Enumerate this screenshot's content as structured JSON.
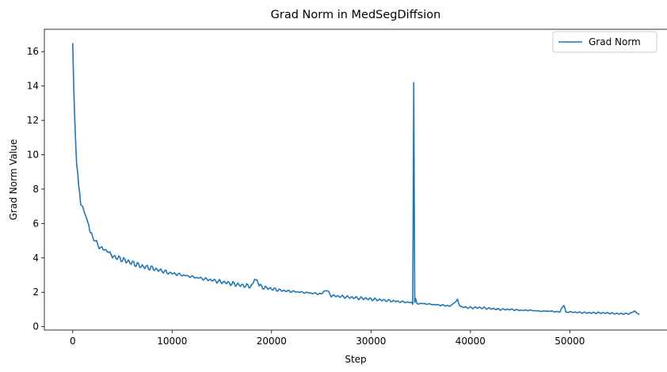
{
  "chart_data": {
    "type": "line",
    "title": "Grad Norm in MedSegDiffsion",
    "xlabel": "Step",
    "ylabel": "Grad Norm Value",
    "xlim": [
      -2850,
      59850
    ],
    "ylim": [
      -0.2,
      17.3
    ],
    "xticks": [
      0,
      10000,
      20000,
      30000,
      40000,
      50000
    ],
    "yticks": [
      0,
      2,
      4,
      6,
      8,
      10,
      12,
      14,
      16
    ],
    "grid": false,
    "legend": {
      "position": "top-right",
      "entries": [
        "Grad Norm"
      ]
    },
    "series": [
      {
        "name": "Grad Norm",
        "color": "#1f77b4",
        "x": [
          0,
          100,
          200,
          300,
          400,
          500,
          600,
          700,
          800,
          1000,
          1200,
          1400,
          1600,
          1800,
          2000,
          2400,
          2800,
          3200,
          3600,
          4000,
          4500,
          5000,
          5500,
          6000,
          6500,
          7000,
          7500,
          8000,
          8500,
          9000,
          9500,
          10000,
          11000,
          12000,
          13000,
          14000,
          15000,
          16000,
          17000,
          18000,
          18300,
          19000,
          20000,
          21000,
          22000,
          23000,
          24000,
          25000,
          25500,
          26000,
          27000,
          28000,
          29000,
          30000,
          31000,
          32000,
          33000,
          34000,
          34200,
          34300,
          34400,
          34500,
          34600,
          35000,
          36000,
          37000,
          38000,
          38700,
          39000,
          40000,
          41000,
          42000,
          43000,
          44000,
          45000,
          46000,
          47000,
          48000,
          49000,
          49400,
          49600,
          50000,
          51000,
          52000,
          53000,
          54000,
          55000,
          56000,
          56500,
          57000
        ],
        "values": [
          16.5,
          14.0,
          12.2,
          10.7,
          9.4,
          9.0,
          8.2,
          7.8,
          7.1,
          7.0,
          6.6,
          6.3,
          5.9,
          5.5,
          5.2,
          4.9,
          4.6,
          4.5,
          4.3,
          4.1,
          4.0,
          3.9,
          3.8,
          3.7,
          3.6,
          3.5,
          3.45,
          3.4,
          3.3,
          3.25,
          3.15,
          3.1,
          3.0,
          2.9,
          2.8,
          2.7,
          2.6,
          2.5,
          2.4,
          2.35,
          2.8,
          2.3,
          2.2,
          2.1,
          2.05,
          2.0,
          1.95,
          1.9,
          2.15,
          1.8,
          1.75,
          1.7,
          1.65,
          1.6,
          1.55,
          1.5,
          1.45,
          1.4,
          1.3,
          14.2,
          1.4,
          1.6,
          1.35,
          1.35,
          1.3,
          1.25,
          1.2,
          1.55,
          1.15,
          1.1,
          1.1,
          1.05,
          1.0,
          1.0,
          0.95,
          0.95,
          0.9,
          0.9,
          0.85,
          1.3,
          0.85,
          0.85,
          0.82,
          0.8,
          0.8,
          0.78,
          0.75,
          0.75,
          0.9,
          0.7
        ]
      }
    ]
  }
}
